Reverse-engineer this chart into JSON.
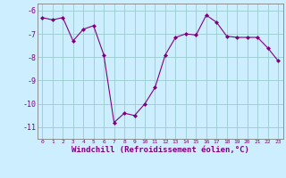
{
  "x": [
    0,
    1,
    2,
    3,
    4,
    5,
    6,
    7,
    8,
    9,
    10,
    11,
    12,
    13,
    14,
    15,
    16,
    17,
    18,
    19,
    20,
    21,
    22,
    23
  ],
  "y": [
    -6.3,
    -6.4,
    -6.3,
    -7.3,
    -6.8,
    -6.65,
    -7.9,
    -10.8,
    -10.4,
    -10.5,
    -10.0,
    -9.3,
    -7.9,
    -7.15,
    -7.0,
    -7.05,
    -6.2,
    -6.5,
    -7.1,
    -7.15,
    -7.15,
    -7.15,
    -7.6,
    -8.15
  ],
  "line_color": "#800080",
  "marker": "D",
  "marker_size": 2,
  "bg_color": "#cceeff",
  "grid_color": "#99cccc",
  "xlabel": "Windchill (Refroidissement éolien,°C)",
  "xlim": [
    -0.5,
    23.5
  ],
  "ylim": [
    -11.5,
    -5.7
  ],
  "yticks": [
    -6,
    -7,
    -8,
    -9,
    -10,
    -11
  ],
  "xticks": [
    0,
    1,
    2,
    3,
    4,
    5,
    6,
    7,
    8,
    9,
    10,
    11,
    12,
    13,
    14,
    15,
    16,
    17,
    18,
    19,
    20,
    21,
    22,
    23
  ],
  "xlabel_color": "#800080",
  "tick_color": "#800080",
  "spine_color": "#808080"
}
